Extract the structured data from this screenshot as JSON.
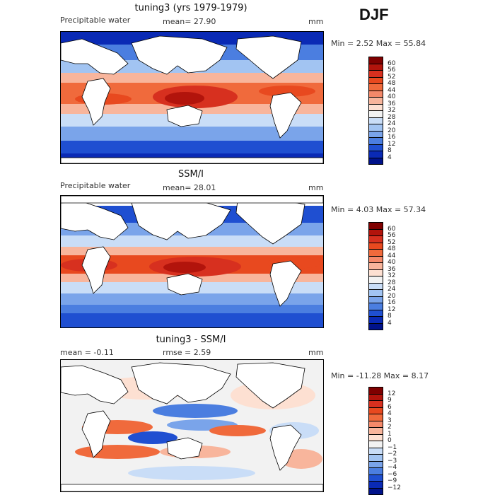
{
  "season": "DJF",
  "panels": [
    {
      "id": "model",
      "title": "tuning3 (yrs 1979-1979)",
      "left_label": "Precipitable water",
      "mid_label": "mean=  27.90",
      "units": "mm",
      "minmax": "Min =    2.52 Max =  55.84"
    },
    {
      "id": "obs",
      "title": "SSM/I",
      "left_label": "Precipitable water",
      "mid_label": "mean=  28.01",
      "units": "mm",
      "minmax": "Min =    4.03 Max =  57.34"
    },
    {
      "id": "diff",
      "title": "tuning3 - SSM/I",
      "left_label": "mean =  -0.11",
      "mid_label": "rmse =   2.59",
      "units": "mm",
      "minmax": "Min = -11.28 Max =   8.17"
    }
  ],
  "chart_data": [
    {
      "type": "heatmap",
      "title": "tuning3 (yrs 1979-1979)",
      "variable": "Precipitable water",
      "units": "mm",
      "mean": 27.9,
      "min": 2.52,
      "max": 55.84,
      "colorbar_levels": [
        "60",
        "56",
        "52",
        "48",
        "44",
        "40",
        "36",
        "32",
        "28",
        "24",
        "20",
        "16",
        "12",
        "8",
        "4"
      ],
      "colors": [
        "#7f0000",
        "#b2140c",
        "#d7301f",
        "#e8491f",
        "#f06a3c",
        "#f4896a",
        "#f8b59c",
        "#fde0d2",
        "#f2f2f2",
        "#c9ddf7",
        "#a2c4f2",
        "#7aa4ea",
        "#4b7ee0",
        "#1f4fd1",
        "#0a2ab5",
        "#00128a"
      ]
    },
    {
      "type": "heatmap",
      "title": "SSM/I",
      "variable": "Precipitable water",
      "units": "mm",
      "mean": 28.01,
      "min": 4.03,
      "max": 57.34,
      "colorbar_levels": [
        "60",
        "56",
        "52",
        "48",
        "44",
        "40",
        "36",
        "32",
        "28",
        "24",
        "20",
        "16",
        "12",
        "8",
        "4"
      ],
      "colors": [
        "#7f0000",
        "#b2140c",
        "#d7301f",
        "#e8491f",
        "#f06a3c",
        "#f4896a",
        "#f8b59c",
        "#fde0d2",
        "#f2f2f2",
        "#c9ddf7",
        "#a2c4f2",
        "#7aa4ea",
        "#4b7ee0",
        "#1f4fd1",
        "#0a2ab5",
        "#00128a"
      ]
    },
    {
      "type": "heatmap",
      "title": "tuning3 - SSM/I",
      "units": "mm",
      "mean": -0.11,
      "rmse": 2.59,
      "min": -11.28,
      "max": 8.17,
      "colorbar_levels": [
        "12",
        "9",
        "6",
        "4",
        "3",
        "2",
        "1",
        "0",
        "−1",
        "−2",
        "−3",
        "−4",
        "−6",
        "−9",
        "−12"
      ],
      "colors": [
        "#7f0000",
        "#b2140c",
        "#d7301f",
        "#e8491f",
        "#f06a3c",
        "#f4896a",
        "#f8b59c",
        "#fde0d2",
        "#f2f2f2",
        "#c9ddf7",
        "#a2c4f2",
        "#7aa4ea",
        "#4b7ee0",
        "#1f4fd1",
        "#0a2ab5",
        "#00128a"
      ]
    }
  ]
}
